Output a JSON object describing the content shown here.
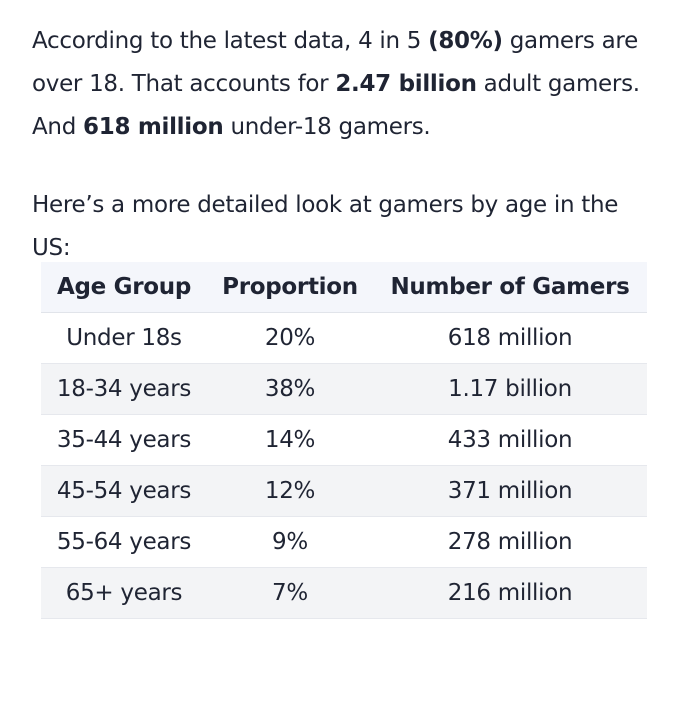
{
  "intro": {
    "t1": "According to the latest data, 4 in 5 ",
    "b1": "(80%)",
    "t2": " gamers are over 18. That accounts for ",
    "b2": "2.47 billion",
    "t3": " adult gamers. And ",
    "b3": "618 million",
    "t4": " under-18 gamers."
  },
  "lead": "Here’s a more detailed look at gamers by age in the US:",
  "table": {
    "headers": [
      "Age Group",
      "Proportion",
      "Number of Gamers"
    ],
    "rows": [
      [
        "Under 18s",
        "20%",
        "618 million"
      ],
      [
        "18-34 years",
        "38%",
        "1.17 billion"
      ],
      [
        "35-44 years",
        "14%",
        "433 million"
      ],
      [
        "45-54 years",
        "12%",
        "371 million"
      ],
      [
        "55-64 years",
        "9%",
        "278 million"
      ],
      [
        "65+ years",
        "7%",
        "216 million"
      ]
    ]
  }
}
